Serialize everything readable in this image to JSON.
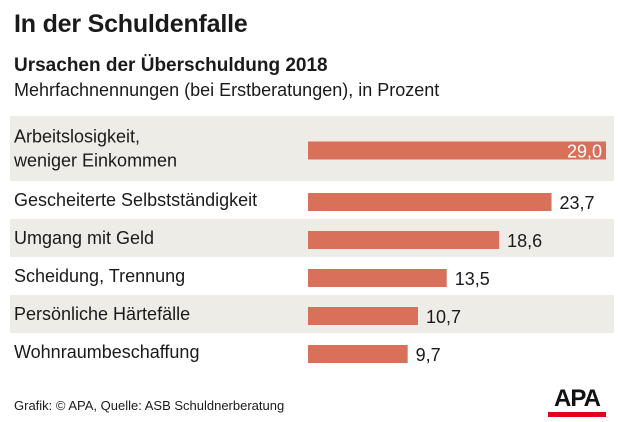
{
  "title": "In der Schuldenfalle",
  "subtitle": "Ursachen der Überschuldung 2018",
  "note": "Mehrfachnennungen (bei Erstberatungen), in Prozent",
  "source": "Grafik: © APA, Quelle: ASB Schuldnerberatung",
  "logo": "APA",
  "colors": {
    "bar": "#d9705a",
    "band": "#eeece7",
    "text": "#1a1a1a",
    "brand_red": "#e3001b"
  },
  "chart_data": {
    "type": "bar",
    "orientation": "horizontal",
    "title": "Ursachen der Überschuldung 2018",
    "unit": "Prozent",
    "xlim": [
      0,
      29
    ],
    "categories": [
      [
        "Arbeitslosigkeit,",
        "weniger Einkommen"
      ],
      [
        "Gescheiterte Selbstständigkeit"
      ],
      [
        "Umgang mit Geld"
      ],
      [
        "Scheidung, Trennung"
      ],
      [
        "Persönliche Härtefälle"
      ],
      [
        "Wohnraumbeschaffung"
      ]
    ],
    "values": [
      29.0,
      23.7,
      18.6,
      13.5,
      10.7,
      9.7
    ],
    "value_labels": [
      "29,0",
      "23,7",
      "18,6",
      "13,5",
      "10,7",
      "9,7"
    ]
  }
}
